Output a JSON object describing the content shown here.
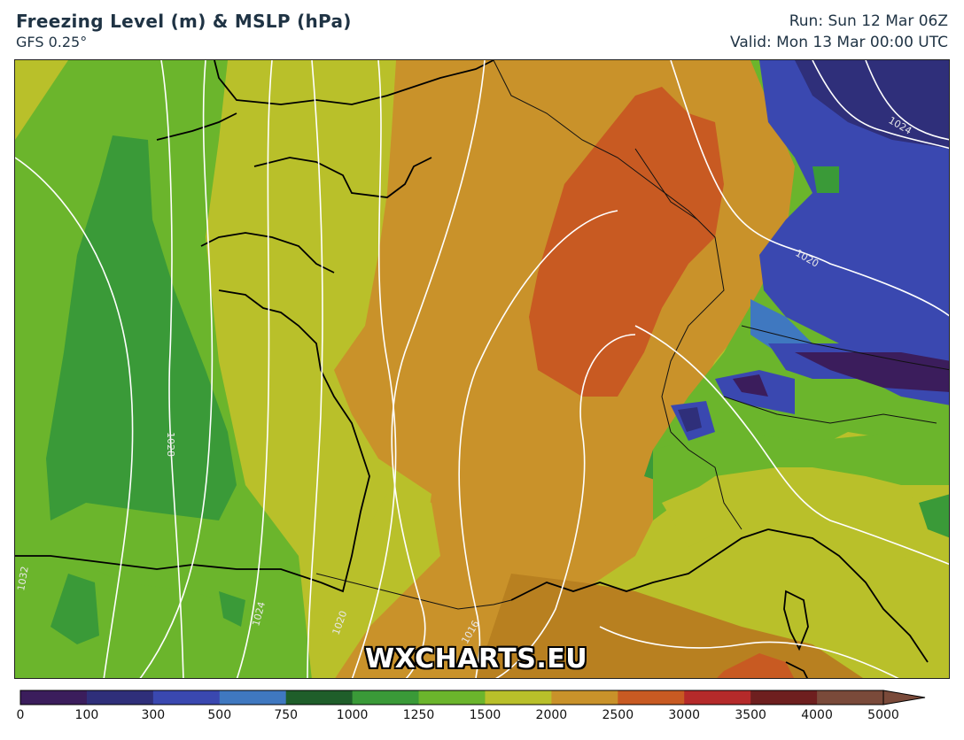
{
  "header": {
    "title": "Freezing Level (m) & MSLP (hPa)",
    "model": "GFS 0.25°",
    "run": "Run: Sun 12 Mar 06Z",
    "valid": "Valid: Mon 13 Mar 00:00 UTC"
  },
  "map": {
    "region": "Western Europe",
    "isobar_labels": [
      "1028",
      "1024",
      "1020",
      "1016",
      "1024",
      "1020",
      "1032"
    ],
    "watermark": "WXCHARTS.EU"
  },
  "legend": {
    "ticks": [
      "0",
      "100",
      "300",
      "500",
      "750",
      "1000",
      "1250",
      "1500",
      "2000",
      "2500",
      "3000",
      "3500",
      "4000",
      "5000"
    ],
    "colors": [
      "#3b1d5c",
      "#2f2f7a",
      "#3a48b0",
      "#3f78c0",
      "#1f5e2a",
      "#3a9a38",
      "#6bb52c",
      "#b9c02a",
      "#c9922a",
      "#c85a22",
      "#b52a2a",
      "#6e1f1f",
      "#7a4a3a"
    ]
  }
}
